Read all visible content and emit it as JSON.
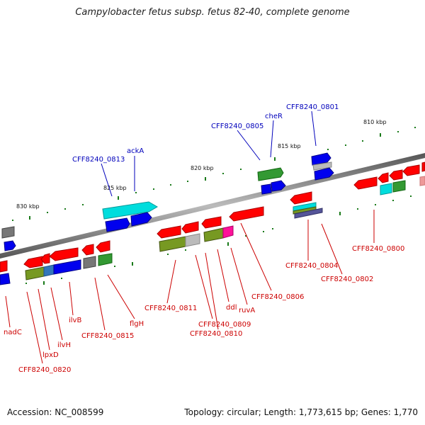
{
  "title": "Campylobacter fetus subsp. fetus 82-40, complete genome",
  "accession": "Accession: NC_008599",
  "topology": "Topology: circular; Length: 1,773,615 bp; Genes: 1,770",
  "kbp_labels": [
    "830 kbp",
    "825 kbp",
    "820 kbp",
    "815 kbp",
    "810 kbp"
  ],
  "gene_labels_top": [
    "CFF8240_0813",
    "ackA",
    "CFF8240_0805",
    "cheR",
    "CFF8240_0801"
  ],
  "gene_labels_bottom": [
    "nadC",
    "lpxD",
    "CFF8240_0820",
    "ilvH",
    "ilvB",
    "CFF8240_0815",
    "flgH",
    "CFF8240_0811",
    "CFF8240_0809",
    "CFF8240_0810",
    "ddl",
    "ruvA",
    "CFF8240_0806",
    "CFF8240_0804",
    "CFF8240_0802",
    "CFF8240_0800"
  ],
  "colors": {
    "red": "#ff0000",
    "blue": "#0000ee",
    "green": "#339933",
    "olive": "#779922",
    "cyan": "#00dddd",
    "gray": "#777777",
    "magenta": "#ff1199",
    "label_red": "#cc0000",
    "label_blue": "#0000bb"
  }
}
